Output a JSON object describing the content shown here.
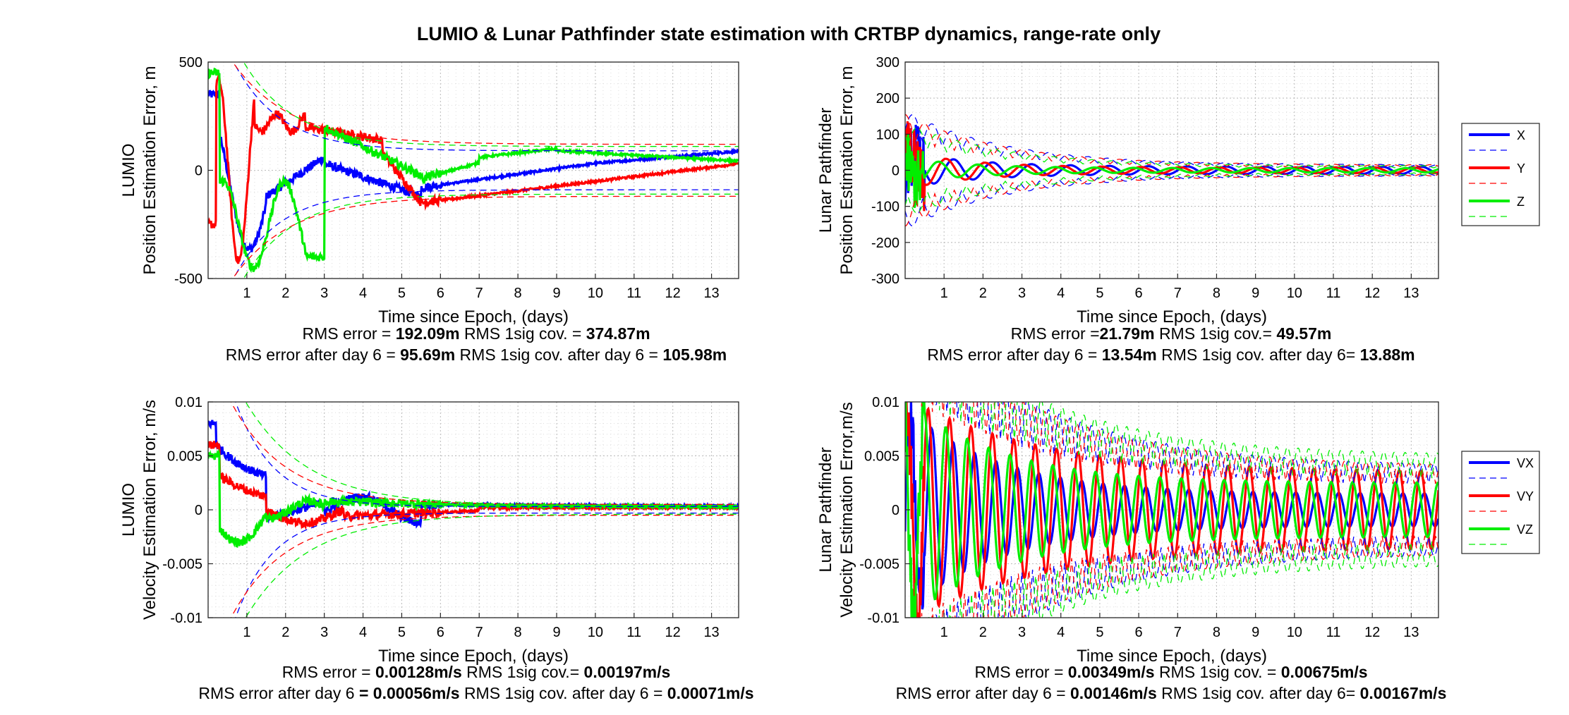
{
  "figure_title": "LUMIO & Lunar Pathfinder state estimation with CRTBP dynamics, range-rate only",
  "colors": {
    "X": "#0000ff",
    "Y": "#ff0000",
    "Z": "#00ee00",
    "grid": "#c8c8c8"
  },
  "chart_data": [
    {
      "id": "lumio-pos",
      "type": "line",
      "ylabel1": "LUMIO",
      "ylabel2": "Position Estimation Error, m",
      "xlabel": "Time since Epoch, (days)",
      "xlim": [
        0,
        13.7
      ],
      "ylim": [
        -500,
        500
      ],
      "xticks": [
        1,
        2,
        3,
        4,
        5,
        6,
        7,
        8,
        9,
        10,
        11,
        12,
        13
      ],
      "yticks": [
        -500,
        0,
        500
      ],
      "ytick_labels": [
        "-500",
        "0",
        "500"
      ],
      "legend": [],
      "series": [
        {
          "name": "X",
          "kind": "error",
          "color": "#0000ff",
          "shape": "lumio_pos_x"
        },
        {
          "name": "Y",
          "kind": "error",
          "color": "#ff0000",
          "shape": "lumio_pos_y"
        },
        {
          "name": "Z",
          "kind": "error",
          "color": "#00ee00",
          "shape": "lumio_pos_z"
        },
        {
          "name": "X 1sig cov.",
          "kind": "cov",
          "color": "#0000ff",
          "peak": 500,
          "start": 800,
          "tau": 1.2,
          "end": 90
        },
        {
          "name": "Y 1sig cov.",
          "kind": "cov",
          "color": "#ff0000",
          "peak": 500,
          "start": 700,
          "tau": 1.5,
          "end": 120
        },
        {
          "name": "Z 1sig cov.",
          "kind": "cov",
          "color": "#00ee00",
          "peak": 500,
          "start": 900,
          "tau": 1.3,
          "end": 110
        }
      ],
      "stats": {
        "line1_a": "RMS error = ",
        "line1_b": "192.09m",
        "line1_c": "  RMS 1sig cov. = ",
        "line1_d": "374.87m",
        "line2_a": "RMS error after day 6 = ",
        "line2_b": "95.69m",
        "line2_c": "  RMS 1sig cov. after day 6 = ",
        "line2_d": "105.98m"
      }
    },
    {
      "id": "lp-pos",
      "type": "line",
      "ylabel1": "Lunar Pathfinder",
      "ylabel2": "Position Estimation Error, m",
      "xlabel": "Time since Epoch, (days)",
      "xlim": [
        0,
        13.7
      ],
      "ylim": [
        -300,
        300
      ],
      "xticks": [
        1,
        2,
        3,
        4,
        5,
        6,
        7,
        8,
        9,
        10,
        11,
        12,
        13
      ],
      "yticks": [
        -300,
        -200,
        -100,
        0,
        100,
        200,
        300
      ],
      "ytick_labels": [
        "-300",
        "-200",
        "-100",
        "0",
        "100",
        "200",
        "300"
      ],
      "legend": [
        "X",
        "Y",
        "Z"
      ],
      "series": [
        {
          "name": "X",
          "kind": "osc",
          "color": "#0000ff",
          "amp": 40,
          "decay": 0.18,
          "floor": 10,
          "period": 1.0,
          "phase": 0.0
        },
        {
          "name": "Y",
          "kind": "osc",
          "color": "#ff0000",
          "amp": 45,
          "decay": 0.2,
          "floor": 8,
          "period": 1.0,
          "phase": 1.2
        },
        {
          "name": "Z",
          "kind": "osc",
          "color": "#00ee00",
          "amp": 30,
          "decay": 0.2,
          "floor": 6,
          "period": 1.0,
          "phase": 2.4
        },
        {
          "name": "X 1sig cov.",
          "kind": "osccov",
          "color": "#0000ff",
          "amp": 150,
          "decay": 0.16,
          "floor": 15,
          "period": 1.0,
          "phase": 0.3
        },
        {
          "name": "Y 1sig cov.",
          "kind": "osccov",
          "color": "#ff0000",
          "amp": 140,
          "decay": 0.16,
          "floor": 15,
          "period": 1.0,
          "phase": 1.5
        },
        {
          "name": "Z 1sig cov.",
          "kind": "osccov",
          "color": "#00ee00",
          "amp": 120,
          "decay": 0.16,
          "floor": 12,
          "period": 1.0,
          "phase": 2.7
        }
      ],
      "stats": {
        "line1_a": "RMS error =",
        "line1_b": "21.79m",
        "line1_c": "  RMS 1sig cov.= ",
        "line1_d": "49.57m",
        "line2_a": "RMS error after day 6 = ",
        "line2_b": "13.54m",
        "line2_c": "  RMS 1sig cov. after day 6= ",
        "line2_d": "13.88m"
      }
    },
    {
      "id": "lumio-vel",
      "type": "line",
      "ylabel1": "LUMIO",
      "ylabel2": "Velocity Estimation Error, m/s",
      "xlabel": "Time since Epoch, (days)",
      "xlim": [
        0,
        13.7
      ],
      "ylim": [
        -0.01,
        0.01
      ],
      "xticks": [
        1,
        2,
        3,
        4,
        5,
        6,
        7,
        8,
        9,
        10,
        11,
        12,
        13
      ],
      "yticks": [
        -0.01,
        -0.005,
        0,
        0.005,
        0.01
      ],
      "ytick_labels": [
        "-0.01",
        "-0.005",
        "0",
        "0.005",
        "0.01"
      ],
      "legend": [],
      "series": [
        {
          "name": "X",
          "kind": "error",
          "color": "#0000ff",
          "shape": "lumio_vel_x"
        },
        {
          "name": "Y",
          "kind": "error",
          "color": "#ff0000",
          "shape": "lumio_vel_y"
        },
        {
          "name": "Z",
          "kind": "error",
          "color": "#00ee00",
          "shape": "lumio_vel_z"
        },
        {
          "name": "X 1sig cov.",
          "kind": "cov",
          "color": "#0000ff",
          "peak": 0.01,
          "start": 0.02,
          "tau": 1.0,
          "end": 0.0003
        },
        {
          "name": "Y 1sig cov.",
          "kind": "cov",
          "color": "#ff0000",
          "peak": 0.01,
          "start": 0.015,
          "tau": 1.4,
          "end": 0.0005
        },
        {
          "name": "Z 1sig cov.",
          "kind": "cov",
          "color": "#00ee00",
          "peak": 0.01,
          "start": 0.018,
          "tau": 1.6,
          "end": 0.0004
        }
      ],
      "stats": {
        "line1_a": "RMS error = ",
        "line1_b": "0.00128m/s",
        "line1_c": "  RMS 1sig cov.= ",
        "line1_d": "0.00197m/s",
        "line2_a": "RMS error after day 6 ",
        "line2_b": "= 0.00056m/s",
        "line2_c": "  RMS 1sig cov. after day 6 = ",
        "line2_d": "0.00071m/s"
      }
    },
    {
      "id": "lp-vel",
      "type": "line",
      "ylabel1": "Lunar Pathfinder",
      "ylabel2": "Velocity Estimation Error,m/s",
      "xlabel": "Time since Epoch, (days)",
      "xlim": [
        0,
        13.7
      ],
      "ylim": [
        -0.01,
        0.01
      ],
      "xticks": [
        1,
        2,
        3,
        4,
        5,
        6,
        7,
        8,
        9,
        10,
        11,
        12,
        13
      ],
      "yticks": [
        -0.01,
        -0.005,
        0,
        0.005,
        0.01
      ],
      "ytick_labels": [
        "-0.01",
        "-0.005",
        "0",
        "0.005",
        "0.01"
      ],
      "legend": [
        "VX",
        "VY",
        "VZ"
      ],
      "series": [
        {
          "name": "VX",
          "kind": "osc",
          "color": "#0000ff",
          "amp": 0.008,
          "decay": 0.14,
          "floor": 0.0015,
          "period": 0.55,
          "phase": 0.0
        },
        {
          "name": "VY",
          "kind": "osc",
          "color": "#ff0000",
          "amp": 0.007,
          "decay": 0.1,
          "floor": 0.0035,
          "period": 0.55,
          "phase": 1.1
        },
        {
          "name": "VZ",
          "kind": "osc",
          "color": "#00ee00",
          "amp": 0.008,
          "decay": 0.14,
          "floor": 0.0025,
          "period": 0.55,
          "phase": 2.2
        },
        {
          "name": "VX 1sig cov.",
          "kind": "osccov",
          "color": "#0000ff",
          "amp": 0.016,
          "decay": 0.12,
          "floor": 0.004,
          "period": 0.55,
          "phase": 0.3
        },
        {
          "name": "VY 1sig cov.",
          "kind": "osccov",
          "color": "#ff0000",
          "amp": 0.015,
          "decay": 0.12,
          "floor": 0.004,
          "period": 0.55,
          "phase": 1.4
        },
        {
          "name": "VZ 1sig cov.",
          "kind": "osccov",
          "color": "#00ee00",
          "amp": 0.015,
          "decay": 0.12,
          "floor": 0.005,
          "period": 0.55,
          "phase": 2.5
        }
      ],
      "stats": {
        "line1_a": "RMS error = ",
        "line1_b": "0.00349m/s",
        "line1_c": "  RMS 1sig cov. = ",
        "line1_d": "0.00675m/s",
        "line2_a": "RMS error after day 6 = ",
        "line2_b": "0.00146m/s",
        "line2_c": "  RMS 1sig cov. after day 6= ",
        "line2_d": "0.00167m/s"
      }
    }
  ]
}
